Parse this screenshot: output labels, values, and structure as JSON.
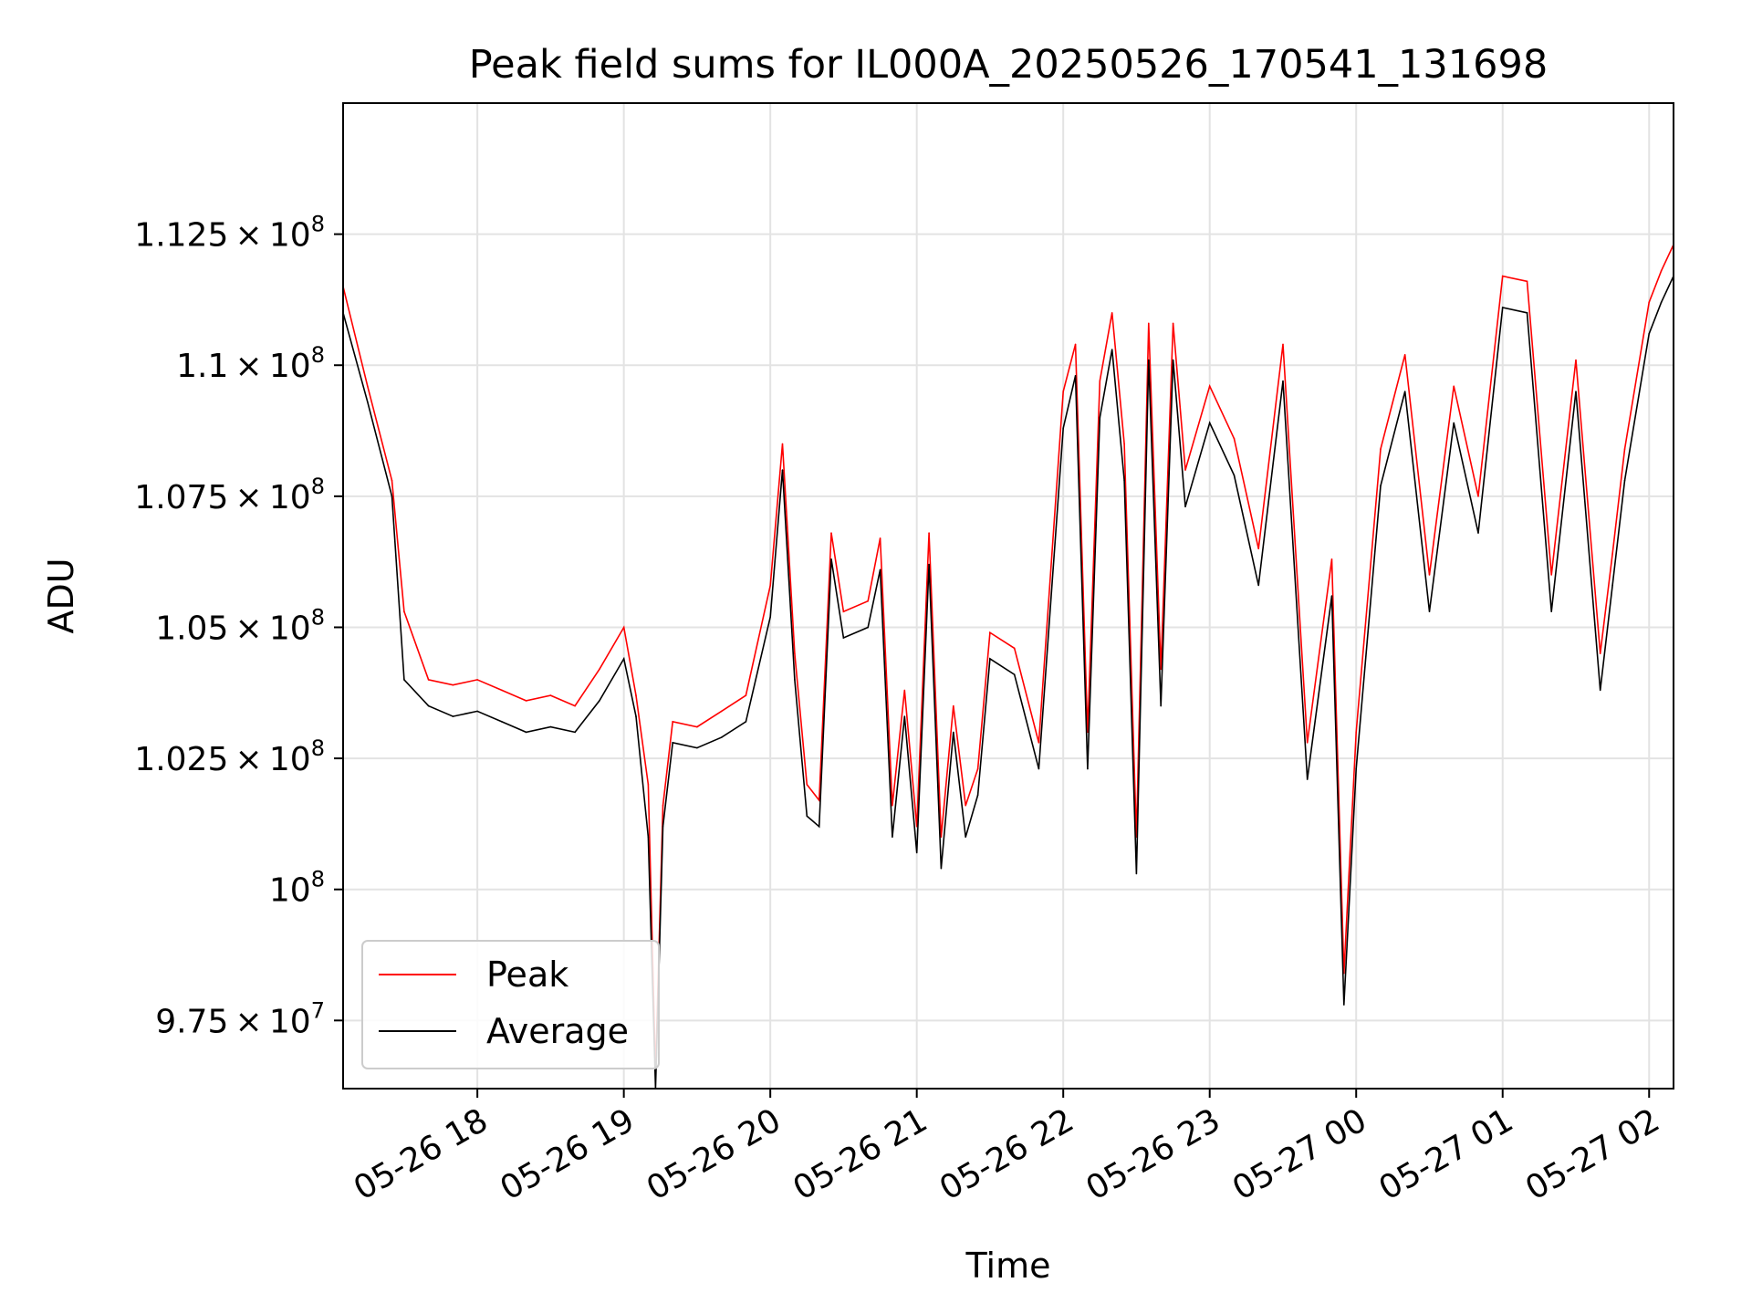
{
  "chart_data": {
    "type": "line",
    "title": "Peak field sums for IL000A_20250526_170541_131698",
    "xlabel": "Time",
    "ylabel": "ADU",
    "x_start": "05-26 17:05",
    "x_end": "05-27 02:10",
    "xlim": [
      "05-26 17:05",
      "05-27 02:10"
    ],
    "ylim": [
      96200000,
      115000000
    ],
    "grid": true,
    "legend_location": "lower left",
    "xticks": [
      {
        "label": "05-26 18",
        "value": "05-26 18:00"
      },
      {
        "label": "05-26 19",
        "value": "05-26 19:00"
      },
      {
        "label": "05-26 20",
        "value": "05-26 20:00"
      },
      {
        "label": "05-26 21",
        "value": "05-26 21:00"
      },
      {
        "label": "05-26 22",
        "value": "05-26 22:00"
      },
      {
        "label": "05-26 23",
        "value": "05-26 23:00"
      },
      {
        "label": "05-27 00",
        "value": "05-27 00:00"
      },
      {
        "label": "05-27 01",
        "value": "05-27 01:00"
      },
      {
        "label": "05-27 02",
        "value": "05-27 02:00"
      }
    ],
    "yticks": [
      {
        "value": 97500000,
        "mant": "9.75",
        "exp": "7"
      },
      {
        "value": 100000000,
        "mant": "",
        "exp": "8"
      },
      {
        "value": 102500000,
        "mant": "1.025",
        "exp": "8"
      },
      {
        "value": 105000000,
        "mant": "1.05",
        "exp": "8"
      },
      {
        "value": 107500000,
        "mant": "1.075",
        "exp": "8"
      },
      {
        "value": 110000000,
        "mant": "1.1",
        "exp": "8"
      },
      {
        "value": 112500000,
        "mant": "1.125",
        "exp": "8"
      }
    ],
    "series": [
      {
        "name": "Peak",
        "color": "#ff0000",
        "x": [
          "05-26 17:05",
          "05-26 17:15",
          "05-26 17:25",
          "05-26 17:30",
          "05-26 17:40",
          "05-26 17:50",
          "05-26 18:00",
          "05-26 18:10",
          "05-26 18:20",
          "05-26 18:30",
          "05-26 18:40",
          "05-26 18:50",
          "05-26 19:00",
          "05-26 19:05",
          "05-26 19:10",
          "05-26 19:13",
          "05-26 19:16",
          "05-26 19:20",
          "05-26 19:30",
          "05-26 19:40",
          "05-26 19:50",
          "05-26 20:00",
          "05-26 20:05",
          "05-26 20:10",
          "05-26 20:15",
          "05-26 20:20",
          "05-26 20:25",
          "05-26 20:30",
          "05-26 20:40",
          "05-26 20:45",
          "05-26 20:50",
          "05-26 20:55",
          "05-26 21:00",
          "05-26 21:05",
          "05-26 21:10",
          "05-26 21:15",
          "05-26 21:20",
          "05-26 21:25",
          "05-26 21:30",
          "05-26 21:40",
          "05-26 21:50",
          "05-26 22:00",
          "05-26 22:05",
          "05-26 22:10",
          "05-26 22:15",
          "05-26 22:20",
          "05-26 22:25",
          "05-26 22:30",
          "05-26 22:35",
          "05-26 22:40",
          "05-26 22:45",
          "05-26 22:50",
          "05-26 23:00",
          "05-26 23:10",
          "05-26 23:20",
          "05-26 23:30",
          "05-26 23:40",
          "05-26 23:50",
          "05-26 23:55",
          "05-27 00:00",
          "05-27 00:10",
          "05-27 00:20",
          "05-27 00:30",
          "05-27 00:40",
          "05-27 00:50",
          "05-27 01:00",
          "05-27 01:10",
          "05-27 01:20",
          "05-27 01:30",
          "05-27 01:40",
          "05-27 01:45",
          "05-27 01:50",
          "05-27 02:00",
          "05-27 02:05",
          "05-27 02:10"
        ],
        "values": [
          111500000,
          109600000,
          107800000,
          105300000,
          104000000,
          103900000,
          104000000,
          103800000,
          103600000,
          103700000,
          103500000,
          104200000,
          105000000,
          103700000,
          102000000,
          96500000,
          101600000,
          103200000,
          103100000,
          103400000,
          103700000,
          105800000,
          108500000,
          104500000,
          102000000,
          101700000,
          106800000,
          105300000,
          105500000,
          106700000,
          101600000,
          103800000,
          101200000,
          106800000,
          101000000,
          103500000,
          101600000,
          102300000,
          104900000,
          104600000,
          102800000,
          109500000,
          110400000,
          103000000,
          109700000,
          111000000,
          108500000,
          101000000,
          110800000,
          104200000,
          110800000,
          108000000,
          109600000,
          108600000,
          106500000,
          110400000,
          102800000,
          106300000,
          98400000,
          103000000,
          108400000,
          110200000,
          106000000,
          109600000,
          107500000,
          111700000,
          111600000,
          106000000,
          110100000,
          104500000,
          106400000,
          108400000,
          111200000,
          111800000,
          112300000
        ]
      },
      {
        "name": "Average",
        "color": "#000000",
        "x": [
          "05-26 17:05",
          "05-26 17:15",
          "05-26 17:25",
          "05-26 17:30",
          "05-26 17:40",
          "05-26 17:50",
          "05-26 18:00",
          "05-26 18:10",
          "05-26 18:20",
          "05-26 18:30",
          "05-26 18:40",
          "05-26 18:50",
          "05-26 19:00",
          "05-26 19:05",
          "05-26 19:10",
          "05-26 19:13",
          "05-26 19:16",
          "05-26 19:20",
          "05-26 19:30",
          "05-26 19:40",
          "05-26 19:50",
          "05-26 20:00",
          "05-26 20:05",
          "05-26 20:10",
          "05-26 20:15",
          "05-26 20:20",
          "05-26 20:25",
          "05-26 20:30",
          "05-26 20:40",
          "05-26 20:45",
          "05-26 20:50",
          "05-26 20:55",
          "05-26 21:00",
          "05-26 21:05",
          "05-26 21:10",
          "05-26 21:15",
          "05-26 21:20",
          "05-26 21:25",
          "05-26 21:30",
          "05-26 21:40",
          "05-26 21:50",
          "05-26 22:00",
          "05-26 22:05",
          "05-26 22:10",
          "05-26 22:15",
          "05-26 22:20",
          "05-26 22:25",
          "05-26 22:30",
          "05-26 22:35",
          "05-26 22:40",
          "05-26 22:45",
          "05-26 22:50",
          "05-26 23:00",
          "05-26 23:10",
          "05-26 23:20",
          "05-26 23:30",
          "05-26 23:40",
          "05-26 23:50",
          "05-26 23:55",
          "05-27 00:00",
          "05-27 00:10",
          "05-27 00:20",
          "05-27 00:30",
          "05-27 00:40",
          "05-27 00:50",
          "05-27 01:00",
          "05-27 01:10",
          "05-27 01:20",
          "05-27 01:30",
          "05-27 01:40",
          "05-27 01:45",
          "05-27 01:50",
          "05-27 02:00",
          "05-27 02:05",
          "05-27 02:10"
        ],
        "values": [
          111000000,
          109300000,
          107500000,
          104000000,
          103500000,
          103300000,
          103400000,
          103200000,
          103000000,
          103100000,
          103000000,
          103600000,
          104400000,
          103300000,
          101000000,
          96200000,
          101200000,
          102800000,
          102700000,
          102900000,
          103200000,
          105200000,
          108000000,
          104000000,
          101400000,
          101200000,
          106300000,
          104800000,
          105000000,
          106100000,
          101000000,
          103300000,
          100700000,
          106200000,
          100400000,
          103000000,
          101000000,
          101800000,
          104400000,
          104100000,
          102300000,
          108800000,
          109800000,
          102300000,
          109000000,
          110300000,
          107800000,
          100300000,
          110100000,
          103500000,
          110100000,
          107300000,
          108900000,
          107900000,
          105800000,
          109700000,
          102100000,
          105600000,
          97800000,
          102300000,
          107700000,
          109500000,
          105300000,
          108900000,
          106800000,
          111100000,
          111000000,
          105300000,
          109500000,
          103800000,
          105800000,
          107800000,
          110600000,
          111200000,
          111700000
        ]
      }
    ]
  }
}
